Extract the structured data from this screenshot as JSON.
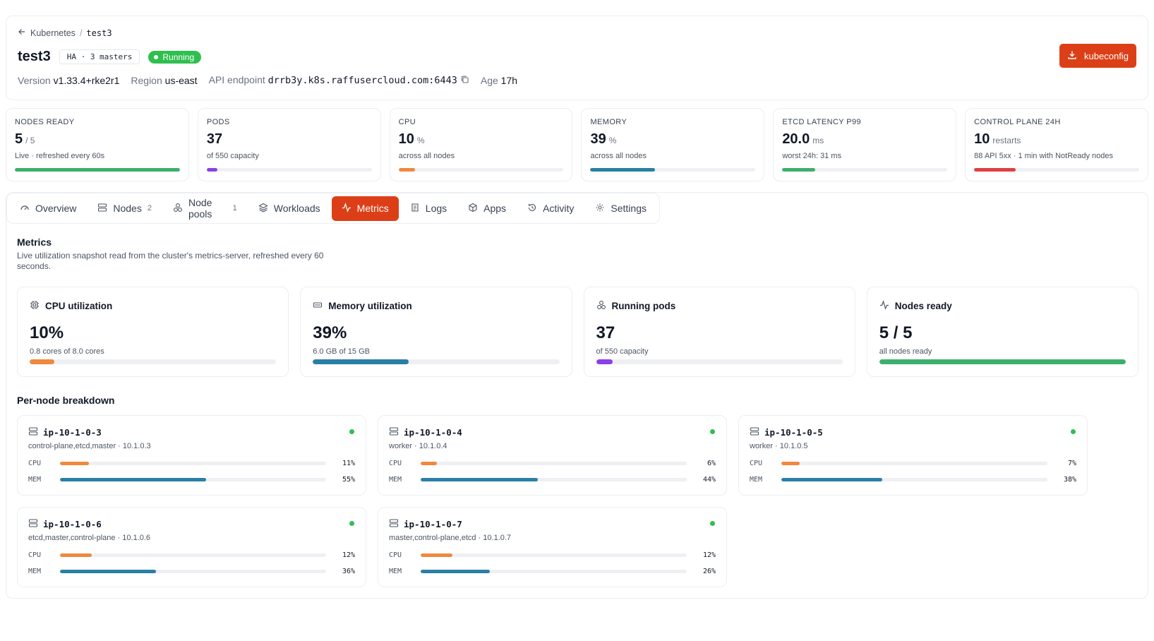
{
  "colors": {
    "accent": "#dc3f17",
    "green": "#2fbf4f",
    "orange": "#f0883e",
    "blue": "#2a7fa6",
    "purple": "#8b3fe6",
    "red": "#e04040",
    "barGreen": "#3daf6d"
  },
  "breadcrumb": {
    "parent": "Kubernetes",
    "separator": "/",
    "current": "test3"
  },
  "cluster": {
    "name": "test3",
    "ha_chip": "HA · 3 masters",
    "status": "Running",
    "version_label": "Version",
    "version": "v1.33.4+rke2r1",
    "region_label": "Region",
    "region": "us-east",
    "endpoint_label": "API endpoint",
    "endpoint": "drrb3y.k8s.raffusercloud.com:6443",
    "age_label": "Age",
    "age": "17h",
    "kubeconfig_label": "kubeconfig"
  },
  "stats": [
    {
      "label": "Nodes ready",
      "value": "5",
      "unit": "/ 5",
      "sub": "Live · refreshed every 60s",
      "fraction": 1.0,
      "color": "#3daf6d"
    },
    {
      "label": "Pods",
      "value": "37",
      "unit": "",
      "sub": "of 550 capacity",
      "fraction": 0.067,
      "color": "#8b3fe6"
    },
    {
      "label": "CPU",
      "value": "10",
      "unit": "%",
      "sub": "across all nodes",
      "fraction": 0.1,
      "color": "#f0883e"
    },
    {
      "label": "Memory",
      "value": "39",
      "unit": "%",
      "sub": "across all nodes",
      "fraction": 0.39,
      "color": "#2a7fa6"
    },
    {
      "label": "etcd latency p99",
      "value": "20.0",
      "unit": "ms",
      "sub": "worst 24h: 31 ms",
      "fraction": 0.2,
      "color": "#3daf6d"
    },
    {
      "label": "Control plane 24h",
      "value": "10",
      "unit": "restarts",
      "sub": "88 API 5xx · 1 min with NotReady nodes",
      "fraction": 0.25,
      "color": "#e04040"
    }
  ],
  "tabs": [
    {
      "label": "Overview",
      "icon": "gauge-icon",
      "count": ""
    },
    {
      "label": "Nodes",
      "icon": "server-icon",
      "count": "2"
    },
    {
      "label": "Node pools",
      "icon": "pool-icon",
      "count": "1"
    },
    {
      "label": "Workloads",
      "icon": "layers-icon",
      "count": ""
    },
    {
      "label": "Metrics",
      "icon": "activity-icon",
      "count": "",
      "active": true
    },
    {
      "label": "Logs",
      "icon": "scroll-icon",
      "count": ""
    },
    {
      "label": "Apps",
      "icon": "package-icon",
      "count": ""
    },
    {
      "label": "Activity",
      "icon": "history-icon",
      "count": ""
    },
    {
      "label": "Settings",
      "icon": "gear-icon",
      "count": ""
    }
  ],
  "metrics": {
    "title": "Metrics",
    "description": "Live utilization snapshot read from the cluster's metrics-server, refreshed every 60 seconds.",
    "cards": [
      {
        "title": "CPU utilization",
        "icon": "cpu-icon",
        "value": "10%",
        "sub": "0.8 cores of 8.0 cores",
        "fraction": 0.1,
        "color": "#f0883e"
      },
      {
        "title": "Memory utilization",
        "icon": "memory-icon",
        "value": "39%",
        "sub": "6.0 GB of 15 GB",
        "fraction": 0.39,
        "color": "#2a7fa6"
      },
      {
        "title": "Running pods",
        "icon": "pool-icon",
        "value": "37",
        "sub": "of 550 capacity",
        "fraction": 0.067,
        "color": "#8b3fe6"
      },
      {
        "title": "Nodes ready",
        "icon": "activity-icon",
        "value": "5 / 5",
        "sub": "all nodes ready",
        "fraction": 1.0,
        "color": "#3daf6d"
      }
    ],
    "per_node_title": "Per-node breakdown",
    "cpu_label": "CPU",
    "mem_label": "MEM",
    "nodes": [
      {
        "name": "ip-10-1-0-3",
        "role": "control-plane,etcd,master · 10.1.0.3",
        "cpu": 11,
        "mem": 55,
        "cpu_text": "11%",
        "mem_text": "55%"
      },
      {
        "name": "ip-10-1-0-4",
        "role": "worker · 10.1.0.4",
        "cpu": 6,
        "mem": 44,
        "cpu_text": "6%",
        "mem_text": "44%"
      },
      {
        "name": "ip-10-1-0-5",
        "role": "worker · 10.1.0.5",
        "cpu": 7,
        "mem": 38,
        "cpu_text": "7%",
        "mem_text": "38%"
      },
      {
        "name": "ip-10-1-0-6",
        "role": "etcd,master,control-plane · 10.1.0.6",
        "cpu": 12,
        "mem": 36,
        "cpu_text": "12%",
        "mem_text": "36%"
      },
      {
        "name": "ip-10-1-0-7",
        "role": "master,control-plane,etcd · 10.1.0.7",
        "cpu": 12,
        "mem": 26,
        "cpu_text": "12%",
        "mem_text": "26%"
      }
    ]
  }
}
